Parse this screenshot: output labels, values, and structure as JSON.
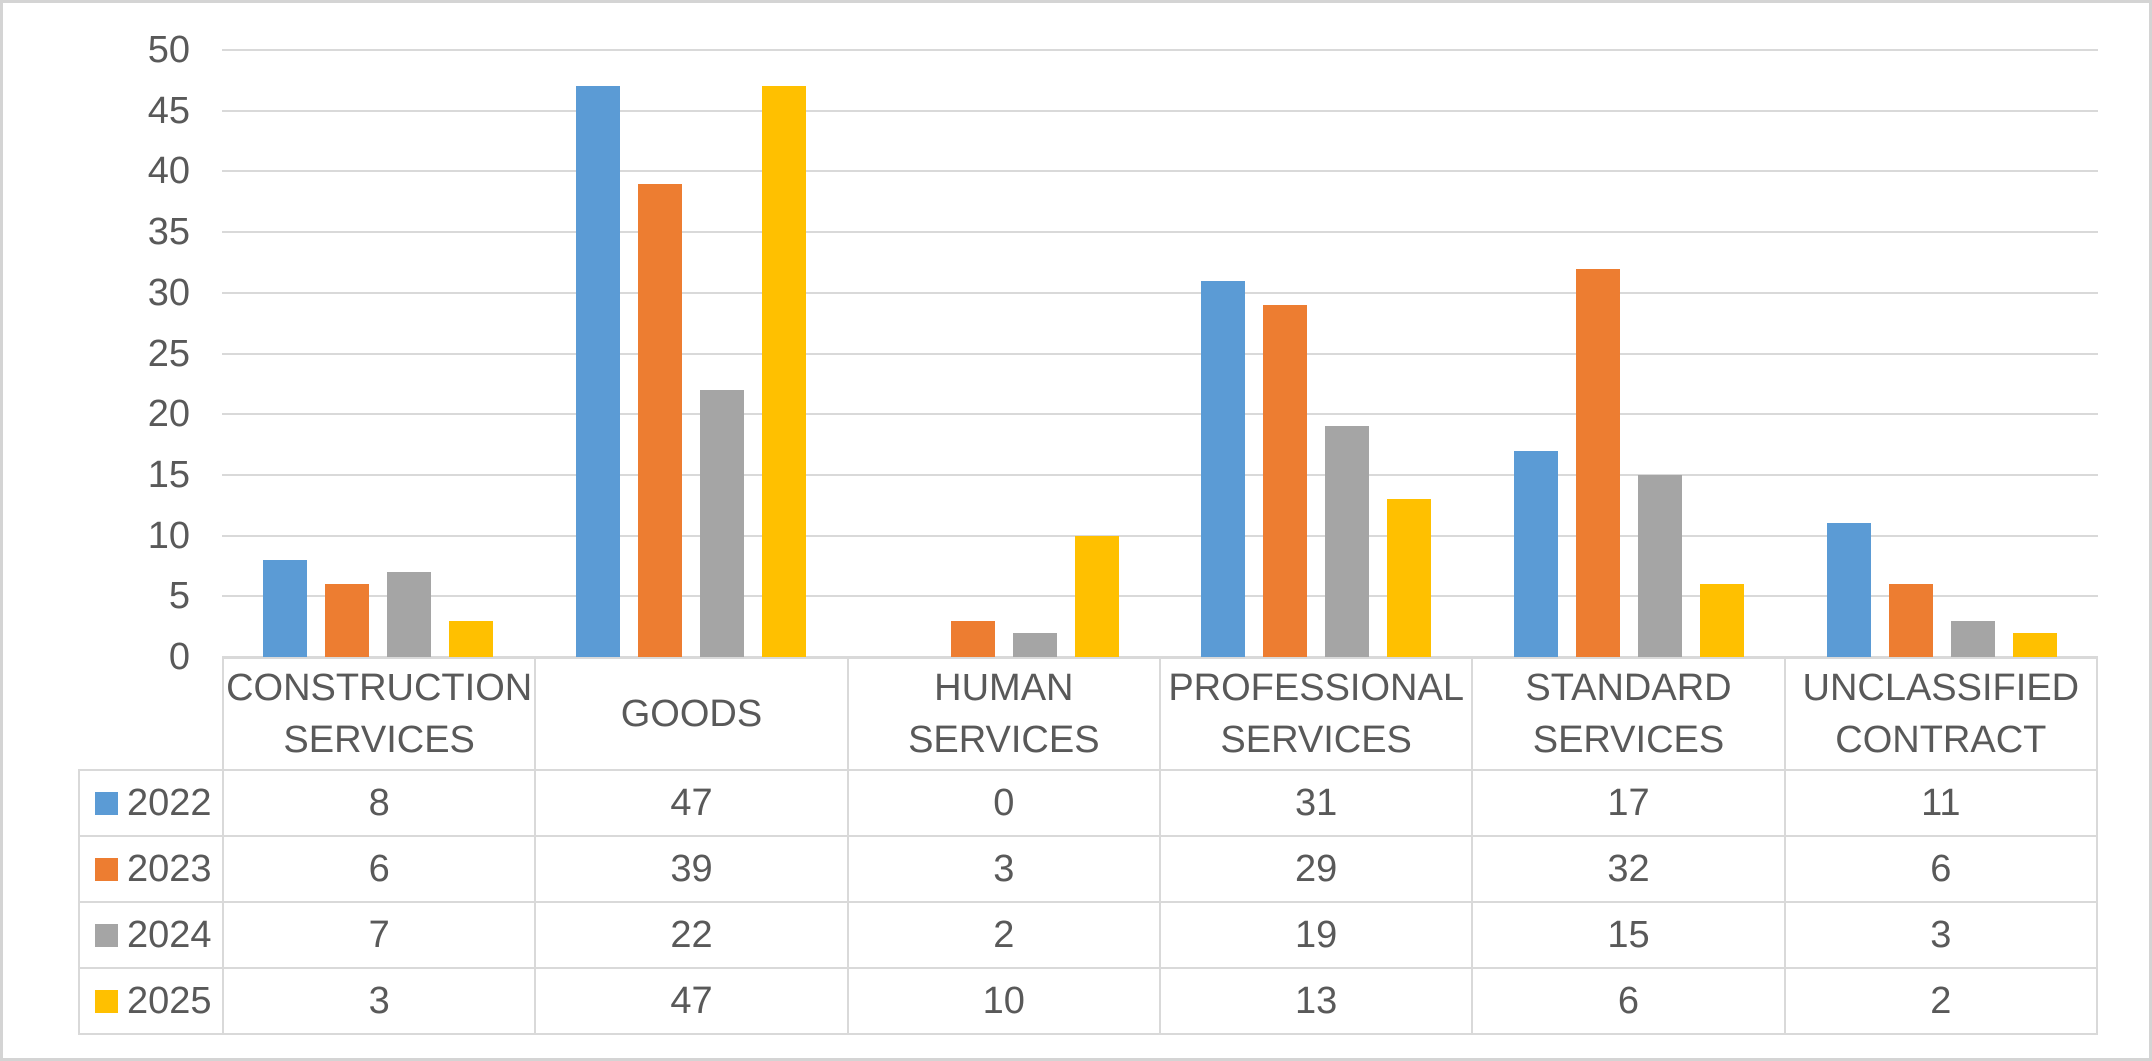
{
  "chart_data": {
    "type": "bar",
    "title": "",
    "categories": [
      "CONSTRUCTION SERVICES",
      "GOODS",
      "HUMAN SERVICES",
      "PROFESSIONAL SERVICES",
      "STANDARD SERVICES",
      "UNCLASSIFIED CONTRACT"
    ],
    "series": [
      {
        "name": "2022",
        "color": "#5B9BD5",
        "values": [
          8,
          47,
          0,
          31,
          17,
          11
        ]
      },
      {
        "name": "2023",
        "color": "#ED7D31",
        "values": [
          6,
          39,
          3,
          29,
          32,
          6
        ]
      },
      {
        "name": "2024",
        "color": "#A5A5A5",
        "values": [
          7,
          22,
          2,
          19,
          15,
          3
        ]
      },
      {
        "name": "2025",
        "color": "#FFC000",
        "values": [
          3,
          47,
          10,
          13,
          6,
          2
        ]
      }
    ],
    "xlabel": "",
    "ylabel": "",
    "ylim": [
      0,
      50
    ],
    "yticks": [
      0,
      5,
      10,
      15,
      20,
      25,
      30,
      35,
      40,
      45,
      50
    ],
    "grid": true,
    "legend_position": "data-table-left",
    "data_table_shown": true
  },
  "colors": {
    "grid": "#D9D9D9",
    "table_border": "#D9D9D9",
    "text": "#595959",
    "background": "#FFFFFF",
    "frame_border": "#D4D4D4"
  },
  "layout_text": {}
}
